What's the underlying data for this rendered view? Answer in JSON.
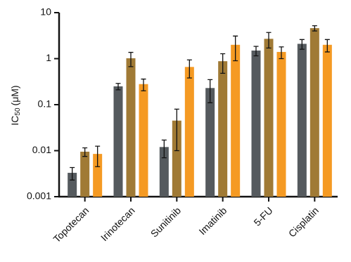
{
  "chart_data": {
    "type": "bar",
    "ylabel": [
      "IC",
      "50",
      "(μM)"
    ],
    "yscale": "log",
    "categories": [
      "Topotecan",
      "Irinotecan",
      "Sunitinib",
      "Imatinib",
      "5-FU",
      "Cisplatin"
    ],
    "series": [
      {
        "color": "#555a5e",
        "values": [
          0.0033,
          0.25,
          0.012,
          0.23,
          1.5,
          2.1
        ],
        "errors": [
          0.001,
          0.04,
          0.005,
          0.12,
          0.35,
          0.5
        ]
      },
      {
        "color": "#a07a35",
        "values": [
          0.0095,
          1.02,
          0.045,
          0.88,
          2.7,
          4.6
        ],
        "errors": [
          0.002,
          0.35,
          0.035,
          0.4,
          1.0,
          0.6
        ]
      },
      {
        "color": "#f59a23",
        "values": [
          0.0085,
          0.28,
          0.66,
          2.0,
          1.4,
          2.0
        ],
        "errors": [
          0.004,
          0.08,
          0.28,
          1.1,
          0.4,
          0.6
        ]
      }
    ],
    "ylim": [
      0.001,
      10
    ],
    "yticks": [
      0.001,
      0.01,
      0.1,
      1,
      10
    ]
  }
}
